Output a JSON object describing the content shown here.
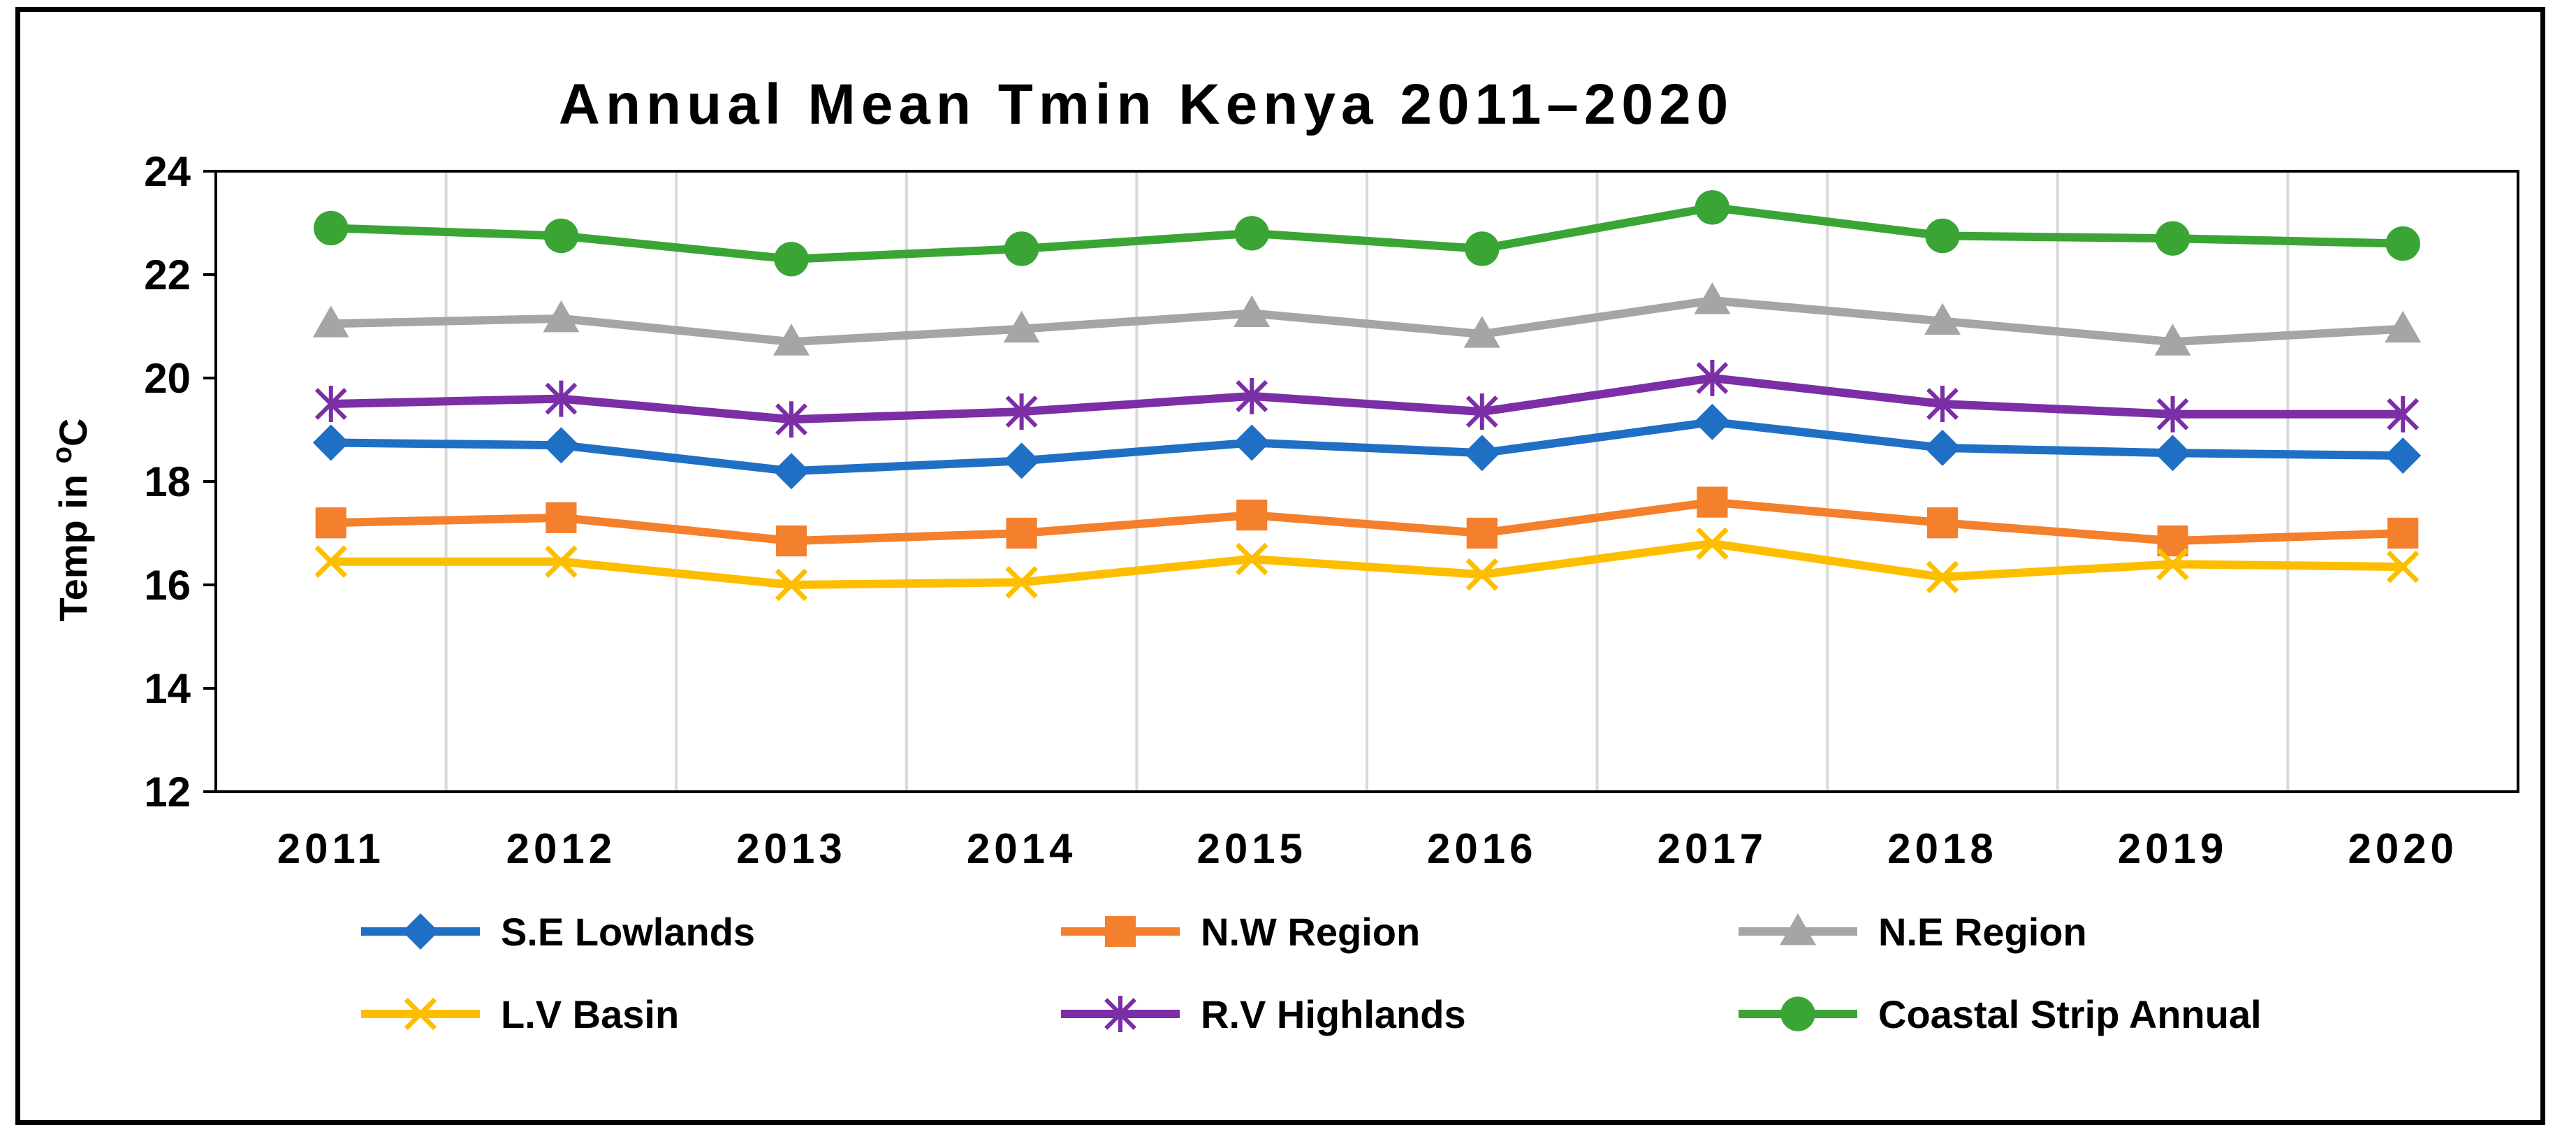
{
  "chart_data": {
    "type": "line",
    "title": "Annual Mean Tmin Kenya 2011–2020",
    "xlabel": "",
    "ylabel": "Temp in °C",
    "ylabel_parts": [
      "Temp in ",
      "o",
      "C"
    ],
    "ylim": [
      12,
      24
    ],
    "yticks": [
      12,
      14,
      16,
      18,
      20,
      22,
      24
    ],
    "categories": [
      "2011",
      "2012",
      "2013",
      "2014",
      "2015",
      "2016",
      "2017",
      "2018",
      "2019",
      "2020"
    ],
    "grid": "vertical",
    "legend_position": "bottom",
    "series": [
      {
        "name": "S.E Lowlands",
        "color": "#1f6fc5",
        "marker": "diamond",
        "values": [
          18.75,
          18.7,
          18.2,
          18.4,
          18.75,
          18.55,
          19.15,
          18.65,
          18.55,
          18.5
        ]
      },
      {
        "name": "N.W Region",
        "color": "#f47f2c",
        "marker": "square",
        "values": [
          17.2,
          17.3,
          16.85,
          17.0,
          17.35,
          17.0,
          17.6,
          17.2,
          16.85,
          17.0
        ]
      },
      {
        "name": "N.E Region",
        "color": "#a5a5a5",
        "marker": "triangle",
        "values": [
          21.05,
          21.15,
          20.7,
          20.95,
          21.25,
          20.85,
          21.5,
          21.1,
          20.7,
          20.95
        ]
      },
      {
        "name": "L.V Basin",
        "color": "#fdbe00",
        "marker": "x",
        "values": [
          16.45,
          16.45,
          16.0,
          16.05,
          16.5,
          16.2,
          16.8,
          16.15,
          16.4,
          16.35
        ]
      },
      {
        "name": "R.V Highlands",
        "color": "#7b2ea6",
        "marker": "asterisk",
        "values": [
          19.5,
          19.6,
          19.2,
          19.35,
          19.65,
          19.35,
          20.0,
          19.5,
          19.3,
          19.3
        ]
      },
      {
        "name": "Coastal Strip Annual",
        "color": "#3aa535",
        "marker": "circle",
        "values": [
          22.9,
          22.75,
          22.3,
          22.5,
          22.8,
          22.5,
          23.3,
          22.75,
          22.7,
          22.6
        ]
      }
    ]
  }
}
